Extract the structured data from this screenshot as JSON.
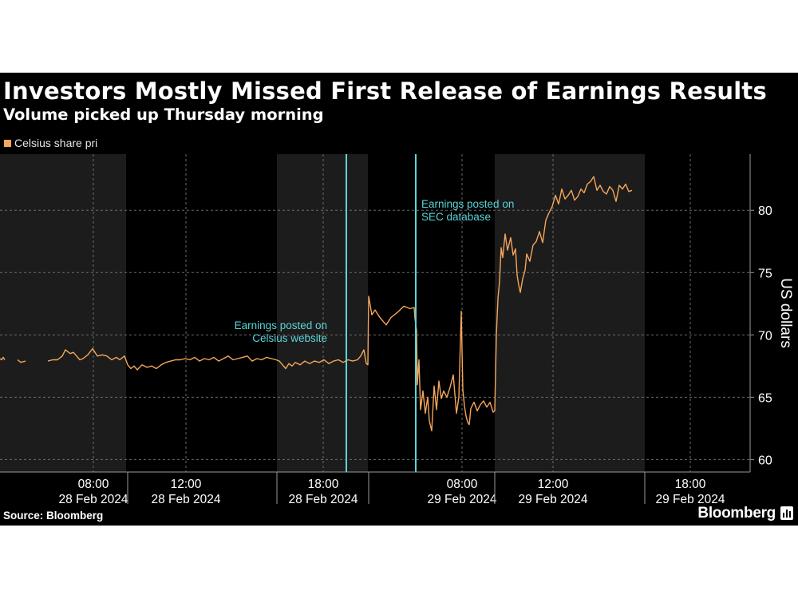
{
  "title": "Investors Mostly Missed First Release of Earnings Results",
  "subtitle": "Volume picked up Thursday morning",
  "legend_label": "Celsius share pri",
  "source": "Source: Bloomberg",
  "brand": "Bloomberg",
  "colors": {
    "line": "#f5a65b",
    "annotation": "#5ad4d8",
    "shade": "#1c1c1c",
    "background": "#000000"
  },
  "chart_data": {
    "type": "line",
    "ylabel": "US dollars",
    "ylim": [
      59,
      84.5
    ],
    "yticks": [
      60,
      65,
      70,
      75,
      80
    ],
    "grid": true,
    "legend_position": "top-left",
    "x_ticks": [
      {
        "time": "08:00",
        "date": "28 Feb 2024"
      },
      {
        "time": "12:00",
        "date": "28 Feb 2024"
      },
      {
        "time": "18:00",
        "date": "28 Feb 2024"
      },
      {
        "time": "08:00",
        "date": "29 Feb 2024"
      },
      {
        "time": "12:00",
        "date": "29 Feb 2024"
      },
      {
        "time": "18:00",
        "date": "29 Feb 2024"
      }
    ],
    "annotations": [
      {
        "line1": "Earnings posted on",
        "line2": "Celsius website",
        "at": "28 Feb 2024 19:40"
      },
      {
        "line1": "Earnings posted on",
        "line2": "SEC database",
        "at": "29 Feb 2024 05:30"
      }
    ],
    "series": [
      {
        "name": "Celsius share pri",
        "values": [
          [
            0,
            68.1
          ],
          [
            2,
            68.0
          ],
          [
            4,
            68.2
          ],
          [
            6,
            68.0
          ],
          [
            22,
            68.0
          ],
          [
            26,
            67.8
          ],
          [
            32,
            67.9
          ],
          [
            60,
            67.9
          ],
          [
            66,
            68.0
          ],
          [
            72,
            68.0
          ],
          [
            78,
            68.3
          ],
          [
            82,
            68.8
          ],
          [
            88,
            68.5
          ],
          [
            92,
            68.6
          ],
          [
            96,
            68.3
          ],
          [
            100,
            68.0
          ],
          [
            104,
            68.1
          ],
          [
            110,
            68.4
          ],
          [
            116,
            68.9
          ],
          [
            122,
            68.3
          ],
          [
            128,
            68.4
          ],
          [
            134,
            68.3
          ],
          [
            140,
            68.0
          ],
          [
            146,
            68.2
          ],
          [
            150,
            68.0
          ],
          [
            156,
            68.3
          ],
          [
            160,
            67.6
          ],
          [
            164,
            67.3
          ],
          [
            168,
            67.5
          ],
          [
            172,
            67.2
          ],
          [
            178,
            67.6
          ],
          [
            184,
            67.4
          ],
          [
            190,
            67.5
          ],
          [
            196,
            67.3
          ],
          [
            202,
            67.6
          ],
          [
            208,
            67.8
          ],
          [
            214,
            67.9
          ],
          [
            220,
            68.0
          ],
          [
            226,
            68.0
          ],
          [
            232,
            68.1
          ],
          [
            238,
            68.0
          ],
          [
            244,
            68.2
          ],
          [
            250,
            67.9
          ],
          [
            256,
            68.1
          ],
          [
            262,
            68.0
          ],
          [
            268,
            68.2
          ],
          [
            274,
            67.9
          ],
          [
            280,
            68.1
          ],
          [
            286,
            68.3
          ],
          [
            292,
            68.0
          ],
          [
            298,
            68.1
          ],
          [
            304,
            68.2
          ],
          [
            310,
            68.3
          ],
          [
            316,
            67.9
          ],
          [
            322,
            68.1
          ],
          [
            328,
            68.0
          ],
          [
            334,
            68.2
          ],
          [
            340,
            68.1
          ],
          [
            346,
            68.0
          ],
          [
            350,
            67.9
          ],
          [
            354,
            67.6
          ],
          [
            358,
            67.3
          ],
          [
            362,
            67.7
          ],
          [
            366,
            67.5
          ],
          [
            370,
            67.8
          ],
          [
            376,
            67.6
          ],
          [
            382,
            67.9
          ],
          [
            388,
            67.7
          ],
          [
            394,
            67.9
          ],
          [
            400,
            67.8
          ],
          [
            406,
            68.0
          ],
          [
            412,
            67.7
          ],
          [
            418,
            67.9
          ],
          [
            424,
            68.0
          ],
          [
            430,
            67.8
          ],
          [
            436,
            68.0
          ],
          [
            442,
            67.9
          ],
          [
            448,
            68.0
          ],
          [
            452,
            68.3
          ],
          [
            456,
            68.8
          ],
          [
            459,
            67.7
          ],
          [
            461,
            67.6
          ],
          [
            462,
            73.1
          ],
          [
            466,
            71.6
          ],
          [
            470,
            72.0
          ],
          [
            476,
            71.4
          ],
          [
            484,
            70.8
          ],
          [
            490,
            71.4
          ],
          [
            498,
            71.8
          ],
          [
            506,
            72.3
          ],
          [
            514,
            72.1
          ],
          [
            519,
            72.2
          ],
          [
            520,
            71.3
          ],
          [
            522,
            70.4
          ],
          [
            523,
            66.0
          ],
          [
            525,
            68.0
          ],
          [
            527,
            64.0
          ],
          [
            530,
            65.5
          ],
          [
            533,
            63.7
          ],
          [
            536,
            65.0
          ],
          [
            538,
            63.1
          ],
          [
            541,
            62.3
          ],
          [
            544,
            65.9
          ],
          [
            547,
            64.0
          ],
          [
            550,
            66.3
          ],
          [
            553,
            64.9
          ],
          [
            556,
            65.5
          ],
          [
            560,
            65.0
          ],
          [
            564,
            65.8
          ],
          [
            568,
            66.8
          ],
          [
            572,
            63.7
          ],
          [
            575,
            65.0
          ],
          [
            578,
            71.9
          ],
          [
            580,
            65.6
          ],
          [
            582,
            64.3
          ],
          [
            584,
            63.5
          ],
          [
            586,
            63.0
          ],
          [
            588,
            62.8
          ],
          [
            590,
            64.1
          ],
          [
            594,
            64.6
          ],
          [
            598,
            63.9
          ],
          [
            602,
            64.4
          ],
          [
            606,
            64.7
          ],
          [
            610,
            64.2
          ],
          [
            614,
            64.6
          ],
          [
            618,
            63.8
          ],
          [
            620,
            63.9
          ],
          [
            622,
            70.0
          ],
          [
            624,
            72.9
          ],
          [
            626,
            74.3
          ],
          [
            628,
            77.0
          ],
          [
            630,
            76.2
          ],
          [
            633,
            78.1
          ],
          [
            636,
            76.8
          ],
          [
            640,
            77.8
          ],
          [
            643,
            76.4
          ],
          [
            646,
            76.9
          ],
          [
            648,
            74.8
          ],
          [
            650,
            74.0
          ],
          [
            652,
            73.4
          ],
          [
            655,
            74.5
          ],
          [
            658,
            75.2
          ],
          [
            660,
            76.5
          ],
          [
            664,
            75.9
          ],
          [
            668,
            77.2
          ],
          [
            672,
            77.5
          ],
          [
            676,
            78.3
          ],
          [
            680,
            77.4
          ],
          [
            684,
            79.2
          ],
          [
            688,
            79.8
          ],
          [
            692,
            80.3
          ],
          [
            696,
            81.2
          ],
          [
            700,
            80.5
          ],
          [
            704,
            81.7
          ],
          [
            708,
            80.9
          ],
          [
            712,
            81.2
          ],
          [
            716,
            81.6
          ],
          [
            720,
            80.8
          ],
          [
            724,
            81.1
          ],
          [
            728,
            81.7
          ],
          [
            732,
            81.4
          ],
          [
            736,
            82.1
          ],
          [
            740,
            82.3
          ],
          [
            744,
            82.7
          ],
          [
            748,
            81.6
          ],
          [
            752,
            82.0
          ],
          [
            756,
            81.5
          ],
          [
            760,
            81.3
          ],
          [
            764,
            81.9
          ],
          [
            768,
            81.6
          ],
          [
            772,
            80.7
          ],
          [
            776,
            82.0
          ],
          [
            780,
            81.7
          ],
          [
            784,
            82.1
          ],
          [
            788,
            81.5
          ],
          [
            792,
            81.6
          ]
        ]
      }
    ]
  }
}
